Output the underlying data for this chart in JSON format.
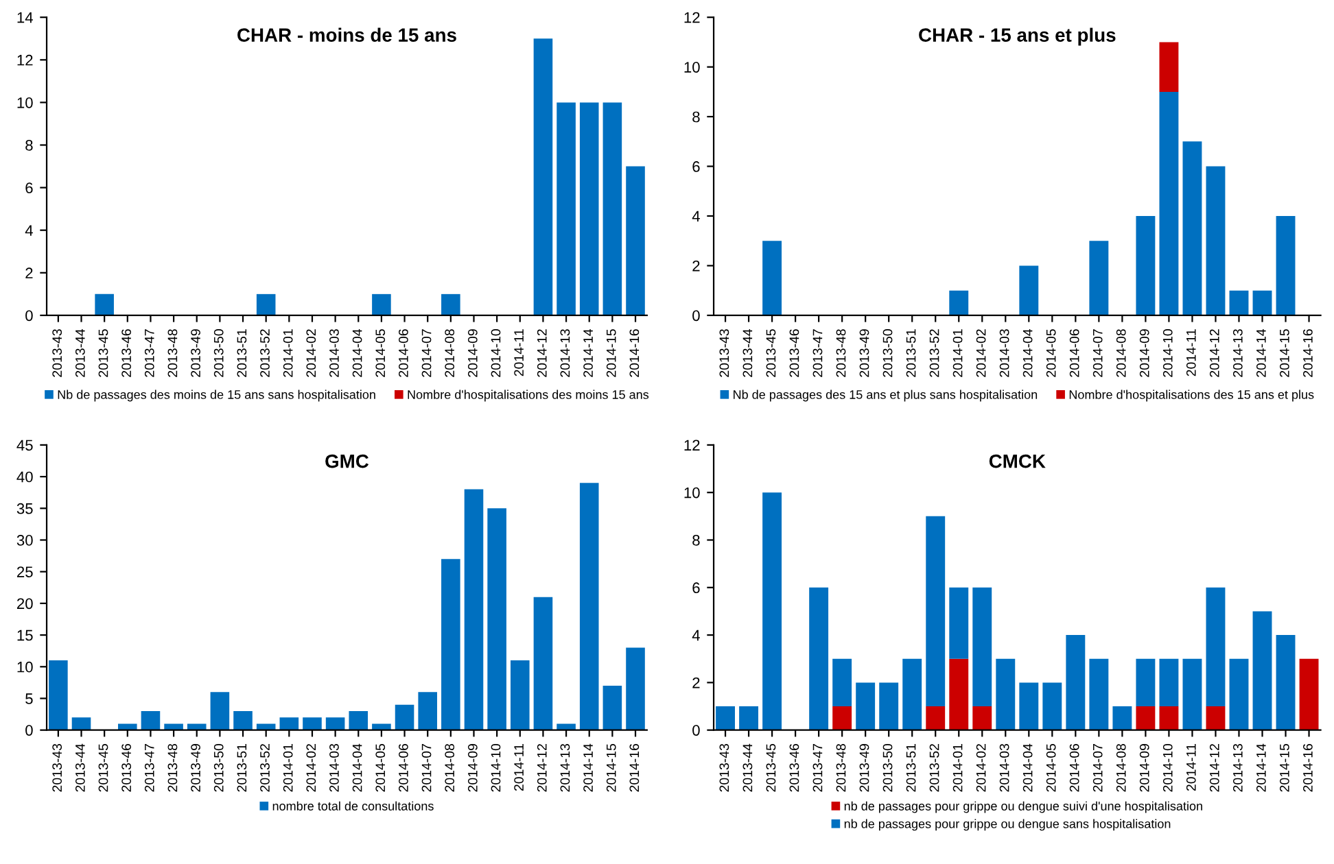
{
  "chart_data": [
    {
      "type": "bar",
      "title": "CHAR - moins de 15 ans",
      "stacked": true,
      "legend": "bottom",
      "grid": false,
      "ylim": [
        0,
        14
      ],
      "yticks": [
        0,
        2,
        4,
        6,
        8,
        10,
        12,
        14
      ],
      "categories": [
        "2013-43",
        "2013-44",
        "2013-45",
        "2013-46",
        "2013-47",
        "2013-48",
        "2013-49",
        "2013-50",
        "2013-51",
        "2013-52",
        "2014-01",
        "2014-02",
        "2014-03",
        "2014-04",
        "2014-05",
        "2014-06",
        "2014-07",
        "2014-08",
        "2014-09",
        "2014-10",
        "2014-11",
        "2014-12",
        "2014-13",
        "2014-14",
        "2014-15",
        "2014-16"
      ],
      "series": [
        {
          "name": "Nb de passages des moins de 15 ans sans hospitalisation",
          "color": "#0070c0",
          "values": [
            0,
            0,
            1,
            0,
            0,
            0,
            0,
            0,
            0,
            1,
            0,
            0,
            0,
            0,
            1,
            0,
            0,
            1,
            0,
            0,
            0,
            13,
            10,
            10,
            10,
            7
          ]
        },
        {
          "name": "Nombre d'hospitalisations des moins 15 ans",
          "color": "#cc0000",
          "values": [
            0,
            0,
            0,
            0,
            0,
            0,
            0,
            0,
            0,
            0,
            0,
            0,
            0,
            0,
            0,
            0,
            0,
            0,
            0,
            0,
            0,
            0,
            0,
            0,
            0,
            0
          ]
        }
      ]
    },
    {
      "type": "bar",
      "title": "CHAR - 15 ans et plus",
      "stacked": true,
      "legend": "bottom",
      "grid": false,
      "ylim": [
        0,
        12
      ],
      "yticks": [
        0,
        2,
        4,
        6,
        8,
        10,
        12
      ],
      "categories": [
        "2013-43",
        "2013-44",
        "2013-45",
        "2013-46",
        "2013-47",
        "2013-48",
        "2013-49",
        "2013-50",
        "2013-51",
        "2013-52",
        "2014-01",
        "2014-02",
        "2014-03",
        "2014-04",
        "2014-05",
        "2014-06",
        "2014-07",
        "2014-08",
        "2014-09",
        "2014-10",
        "2014-11",
        "2014-12",
        "2014-13",
        "2014-14",
        "2014-15",
        "2014-16"
      ],
      "series": [
        {
          "name": "Nb de passages des 15 ans et plus sans hospitalisation",
          "color": "#0070c0",
          "values": [
            0,
            0,
            3,
            0,
            0,
            0,
            0,
            0,
            0,
            0,
            1,
            0,
            0,
            2,
            0,
            0,
            3,
            0,
            4,
            9,
            7,
            6,
            1,
            1,
            4,
            0
          ]
        },
        {
          "name": "Nombre d'hospitalisations des 15 ans et plus",
          "color": "#cc0000",
          "values": [
            0,
            0,
            0,
            0,
            0,
            0,
            0,
            0,
            0,
            0,
            0,
            0,
            0,
            0,
            0,
            0,
            0,
            0,
            0,
            2,
            0,
            0,
            0,
            0,
            0,
            0
          ]
        }
      ]
    },
    {
      "type": "bar",
      "title": "GMC",
      "legend": "bottom",
      "grid": false,
      "ylim": [
        0,
        45
      ],
      "yticks": [
        0,
        5,
        10,
        15,
        20,
        25,
        30,
        35,
        40,
        45
      ],
      "categories": [
        "2013-43",
        "2013-44",
        "2013-45",
        "2013-46",
        "2013-47",
        "2013-48",
        "2013-49",
        "2013-50",
        "2013-51",
        "2013-52",
        "2014-01",
        "2014-02",
        "2014-03",
        "2014-04",
        "2014-05",
        "2014-06",
        "2014-07",
        "2014-08",
        "2014-09",
        "2014-10",
        "2014-11",
        "2014-12",
        "2014-13",
        "2014-14",
        "2014-15",
        "2014-16"
      ],
      "series": [
        {
          "name": "nombre total de consultations",
          "color": "#0070c0",
          "values": [
            11,
            2,
            0,
            1,
            3,
            1,
            1,
            6,
            3,
            1,
            2,
            2,
            2,
            3,
            1,
            4,
            6,
            27,
            38,
            35,
            11,
            21,
            1,
            39,
            7,
            13
          ]
        }
      ]
    },
    {
      "type": "bar",
      "title": "CMCK",
      "stacked": true,
      "legend": "bottom",
      "grid": false,
      "ylim": [
        0,
        12
      ],
      "yticks": [
        0,
        2,
        4,
        6,
        8,
        10,
        12
      ],
      "categories": [
        "2013-43",
        "2013-44",
        "2013-45",
        "2013-46",
        "2013-47",
        "2013-48",
        "2013-49",
        "2013-50",
        "2013-51",
        "2013-52",
        "2014-01",
        "2014-02",
        "2014-03",
        "2014-04",
        "2014-05",
        "2014-06",
        "2014-07",
        "2014-08",
        "2014-09",
        "2014-10",
        "2014-11",
        "2014-12",
        "2014-13",
        "2014-14",
        "2014-15",
        "2014-16"
      ],
      "series": [
        {
          "name": "nb de passages pour grippe ou dengue suivi d'une hospitalisation",
          "color": "#cc0000",
          "values": [
            0,
            0,
            0,
            0,
            0,
            1,
            0,
            0,
            0,
            1,
            3,
            1,
            0,
            0,
            0,
            0,
            0,
            0,
            1,
            1,
            0,
            1,
            0,
            0,
            0,
            3
          ]
        },
        {
          "name": "nb de passages pour grippe ou dengue sans hospitalisation",
          "color": "#0070c0",
          "values": [
            1,
            1,
            10,
            0,
            6,
            2,
            2,
            2,
            3,
            8,
            3,
            5,
            3,
            2,
            2,
            4,
            3,
            1,
            2,
            2,
            3,
            5,
            3,
            5,
            4,
            0
          ]
        }
      ]
    }
  ]
}
